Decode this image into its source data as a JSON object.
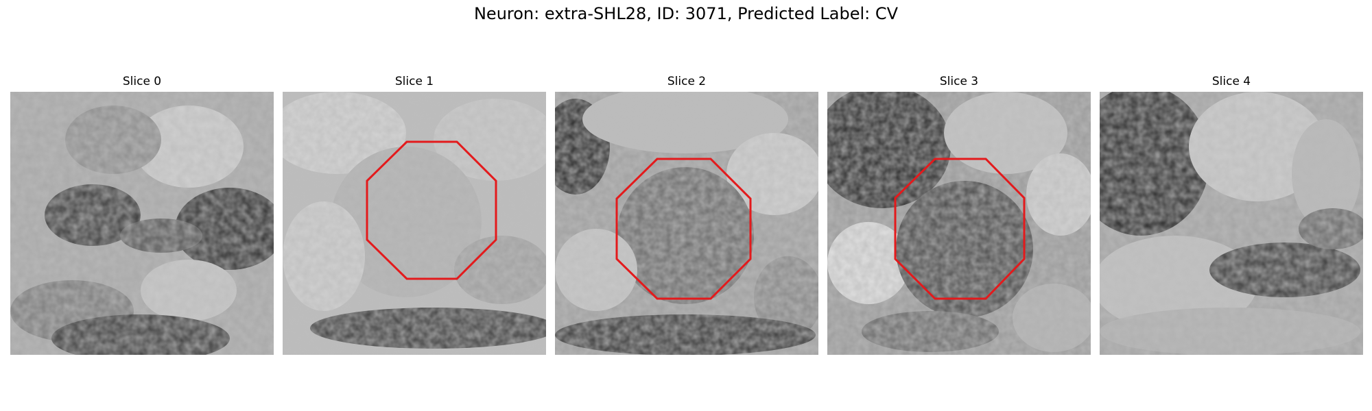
{
  "figure": {
    "title": "Neuron: extra-SHL28, ID: 3071, Predicted Label: CV",
    "outline_color": "#e31a1c",
    "colormap": "gray",
    "panels": [
      {
        "title": "Slice 0",
        "has_outline": false
      },
      {
        "title": "Slice 1",
        "has_outline": true
      },
      {
        "title": "Slice 2",
        "has_outline": true
      },
      {
        "title": "Slice 3",
        "has_outline": true
      },
      {
        "title": "Slice 4",
        "has_outline": false
      }
    ]
  }
}
